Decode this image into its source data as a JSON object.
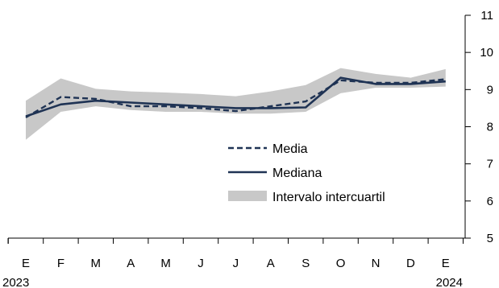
{
  "chart_data": {
    "type": "line",
    "categories": [
      "E",
      "F",
      "M",
      "A",
      "M",
      "J",
      "J",
      "A",
      "S",
      "O",
      "N",
      "D",
      "E"
    ],
    "year_labels": [
      "2023",
      "2024"
    ],
    "ylim": [
      5,
      11
    ],
    "yticks": [
      5,
      6,
      7,
      8,
      9,
      10,
      11
    ],
    "y_axis_side": "right",
    "grid": false,
    "legend_position": "center-right",
    "series": [
      {
        "name": "Media",
        "style": "dashed",
        "color": "#1f3354",
        "values": [
          8.25,
          8.8,
          8.75,
          8.55,
          8.55,
          8.5,
          8.42,
          8.55,
          8.68,
          9.25,
          9.18,
          9.18,
          9.28
        ]
      },
      {
        "name": "Mediana",
        "style": "solid",
        "color": "#1f3354",
        "values": [
          8.28,
          8.6,
          8.7,
          8.65,
          8.6,
          8.55,
          8.5,
          8.5,
          8.52,
          9.32,
          9.15,
          9.15,
          9.22
        ]
      },
      {
        "name": "Intervalo intercuartil",
        "style": "band",
        "color": "#c8c8c8",
        "lower": [
          7.65,
          8.4,
          8.55,
          8.45,
          8.4,
          8.4,
          8.35,
          8.35,
          8.4,
          8.9,
          9.05,
          9.05,
          9.08
        ],
        "upper": [
          8.7,
          9.3,
          9.02,
          8.95,
          8.92,
          8.88,
          8.82,
          8.95,
          9.12,
          9.58,
          9.42,
          9.32,
          9.55
        ]
      }
    ]
  }
}
